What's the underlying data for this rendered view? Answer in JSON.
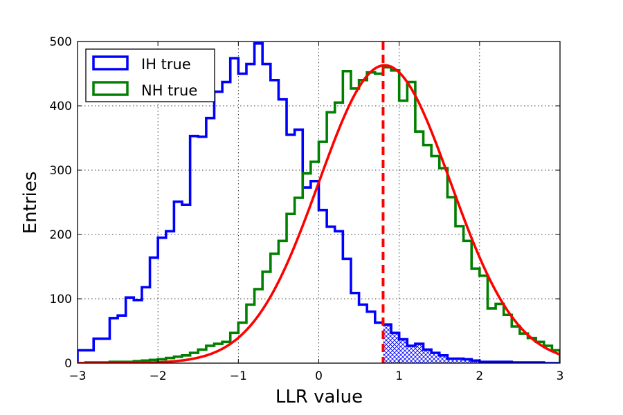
{
  "chart_data": {
    "type": "histogram",
    "xlabel": "LLR value",
    "ylabel": "Entries",
    "xlim": [
      -3,
      3
    ],
    "ylim": [
      0,
      500
    ],
    "x_ticks": [
      "−3",
      "−2",
      "−1",
      "0",
      "1",
      "2",
      "3"
    ],
    "y_ticks": [
      "0",
      "100",
      "200",
      "300",
      "400",
      "500"
    ],
    "grid": true,
    "legend_placement": "top-left",
    "bin_edges": [
      -3.0,
      -2.9,
      -2.8,
      -2.7,
      -2.6,
      -2.5,
      -2.4,
      -2.3,
      -2.2,
      -2.1,
      -2.0,
      -1.9,
      -1.8,
      -1.7,
      -1.6,
      -1.5,
      -1.4,
      -1.3,
      -1.2,
      -1.1,
      -1.0,
      -0.9,
      -0.8,
      -0.7,
      -0.6,
      -0.5,
      -0.4,
      -0.3,
      -0.2,
      -0.1,
      0.0,
      0.1,
      0.2,
      0.3,
      0.4,
      0.5,
      0.6,
      0.7,
      0.8,
      0.9,
      1.0,
      1.1,
      1.2,
      1.3,
      1.4,
      1.5,
      1.6,
      1.7,
      1.8,
      1.9,
      2.0,
      2.1,
      2.2,
      2.3,
      2.4,
      2.5,
      2.6,
      2.7,
      2.8,
      2.9,
      3.0
    ],
    "series": [
      {
        "name": "IH true",
        "color": "#0000ff",
        "values": [
          20,
          20,
          38,
          38,
          70,
          74,
          102,
          98,
          118,
          164,
          195,
          205,
          251,
          246,
          353,
          352,
          381,
          422,
          437,
          474,
          450,
          465,
          497,
          465,
          440,
          410,
          355,
          363,
          273,
          283,
          238,
          212,
          205,
          162,
          109,
          91,
          80,
          63,
          60,
          47,
          37,
          27,
          30,
          21,
          16,
          12,
          7,
          7,
          6,
          4,
          2,
          2,
          2,
          2,
          1,
          1,
          1,
          1,
          0,
          0
        ]
      },
      {
        "name": "NH true",
        "color": "#008000",
        "values": [
          0,
          1,
          1,
          1,
          2,
          2,
          2,
          3,
          4,
          5,
          6,
          8,
          10,
          12,
          16,
          21,
          27,
          30,
          33,
          47,
          63,
          91,
          115,
          142,
          170,
          190,
          232,
          257,
          295,
          313,
          344,
          390,
          405,
          454,
          427,
          440,
          452,
          450,
          460,
          455,
          408,
          437,
          360,
          339,
          322,
          303,
          258,
          213,
          190,
          147,
          136,
          85,
          92,
          75,
          57,
          46,
          39,
          33,
          27,
          20
        ]
      }
    ],
    "fit_curve": {
      "type": "gaussian",
      "color": "#ff0000",
      "mean": 0.82,
      "sigma": 0.82,
      "amplitude": 463
    },
    "vertical_line": {
      "x": 0.8,
      "color": "#ff0000",
      "style": "dashed"
    },
    "shaded_region": {
      "series": "IH true",
      "from_x": 0.8,
      "to_x": 3.0,
      "pattern": "crosshatch",
      "color": "#0000ff"
    }
  }
}
